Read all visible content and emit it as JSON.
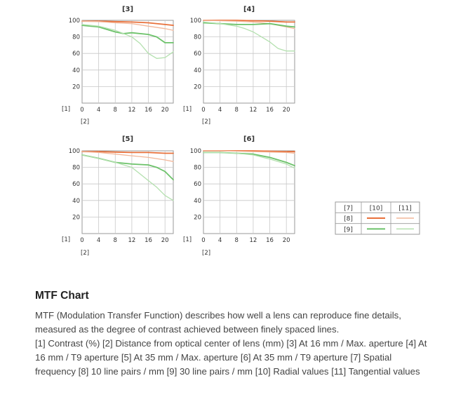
{
  "chart_data": [
    {
      "type": "line",
      "title": "[3]",
      "ylabel": "[1]",
      "xlabel": "[2]",
      "xlim": [
        0,
        22
      ],
      "ylim": [
        0,
        100
      ],
      "xticks": [
        "0",
        "4",
        "8",
        "12",
        "16",
        "20"
      ],
      "yticks": [
        "20",
        "40",
        "60",
        "80",
        "100"
      ],
      "grid": true,
      "series": [
        {
          "group": "[8]",
          "kind": "[10]",
          "color": "#e8703a",
          "dash": false,
          "x": [
            0,
            4,
            8,
            12,
            16,
            20,
            22
          ],
          "y": [
            99,
            99,
            98.5,
            98,
            97,
            95,
            94
          ]
        },
        {
          "group": "[8]",
          "kind": "[11]",
          "color": "#f2b79a",
          "dash": false,
          "x": [
            0,
            4,
            8,
            12,
            16,
            20,
            22
          ],
          "y": [
            99,
            98.5,
            97,
            96,
            93,
            90,
            88
          ]
        },
        {
          "group": "[9]",
          "kind": "[10]",
          "color": "#6cc26a",
          "dash": false,
          "x": [
            0,
            4,
            8,
            10,
            12,
            16,
            18,
            20,
            22
          ],
          "y": [
            94,
            92,
            86,
            84,
            85,
            83,
            80,
            73,
            73
          ]
        },
        {
          "group": "[9]",
          "kind": "[11]",
          "color": "#b3e0ae",
          "dash": false,
          "x": [
            0,
            4,
            8,
            12,
            14,
            16,
            18,
            20,
            22
          ],
          "y": [
            95,
            93,
            88,
            80,
            72,
            60,
            54,
            55,
            62
          ]
        }
      ]
    },
    {
      "type": "line",
      "title": "[4]",
      "ylabel": "[1]",
      "xlabel": "[2]",
      "xlim": [
        0,
        22
      ],
      "ylim": [
        0,
        100
      ],
      "xticks": [
        "0",
        "4",
        "8",
        "12",
        "16",
        "20"
      ],
      "yticks": [
        "20",
        "40",
        "60",
        "80",
        "100"
      ],
      "grid": true,
      "series": [
        {
          "group": "[8]",
          "kind": "[10]",
          "color": "#e8703a",
          "dash": false,
          "x": [
            0,
            4,
            8,
            12,
            16,
            20,
            22
          ],
          "y": [
            100,
            100,
            100,
            99.5,
            99,
            98,
            98
          ]
        },
        {
          "group": "[8]",
          "kind": "[11]",
          "color": "#f2b79a",
          "dash": false,
          "x": [
            0,
            4,
            8,
            12,
            16,
            20,
            22
          ],
          "y": [
            100,
            99.5,
            99,
            98,
            96,
            92,
            90
          ]
        },
        {
          "group": "[9]",
          "kind": "[10]",
          "color": "#6cc26a",
          "dash": false,
          "x": [
            0,
            4,
            8,
            12,
            16,
            20,
            22
          ],
          "y": [
            97,
            96,
            95,
            95,
            96,
            93,
            92
          ]
        },
        {
          "group": "[9]",
          "kind": "[11]",
          "color": "#b3e0ae",
          "dash": false,
          "x": [
            0,
            4,
            8,
            10,
            12,
            14,
            16,
            18,
            20,
            22
          ],
          "y": [
            98,
            96,
            93,
            90,
            86,
            80,
            74,
            66,
            63,
            63
          ]
        }
      ]
    },
    {
      "type": "line",
      "title": "[5]",
      "ylabel": "[1]",
      "xlabel": "[2]",
      "xlim": [
        0,
        22
      ],
      "ylim": [
        0,
        100
      ],
      "xticks": [
        "0",
        "4",
        "8",
        "12",
        "16",
        "20"
      ],
      "yticks": [
        "20",
        "40",
        "60",
        "80",
        "100"
      ],
      "grid": true,
      "series": [
        {
          "group": "[8]",
          "kind": "[10]",
          "color": "#e8703a",
          "dash": false,
          "x": [
            0,
            4,
            8,
            12,
            16,
            20,
            22
          ],
          "y": [
            99,
            99,
            98.5,
            98,
            98,
            97,
            97
          ]
        },
        {
          "group": "[8]",
          "kind": "[11]",
          "color": "#f2b79a",
          "dash": false,
          "x": [
            0,
            4,
            8,
            12,
            16,
            20,
            22
          ],
          "y": [
            99,
            98,
            96,
            94,
            92,
            89,
            87
          ]
        },
        {
          "group": "[9]",
          "kind": "[10]",
          "color": "#6cc26a",
          "dash": false,
          "x": [
            0,
            4,
            8,
            12,
            16,
            18,
            20,
            22
          ],
          "y": [
            95,
            91,
            86,
            84,
            83,
            80,
            75,
            65
          ]
        },
        {
          "group": "[9]",
          "kind": "[11]",
          "color": "#b3e0ae",
          "dash": false,
          "x": [
            0,
            4,
            8,
            12,
            14,
            16,
            18,
            20,
            22
          ],
          "y": [
            95,
            91,
            86,
            80,
            72,
            64,
            56,
            46,
            40
          ]
        }
      ]
    },
    {
      "type": "line",
      "title": "[6]",
      "ylabel": "[1]",
      "xlabel": "[2]",
      "xlim": [
        0,
        22
      ],
      "ylim": [
        0,
        100
      ],
      "xticks": [
        "0",
        "4",
        "8",
        "12",
        "16",
        "20"
      ],
      "yticks": [
        "20",
        "40",
        "60",
        "80",
        "100"
      ],
      "grid": true,
      "series": [
        {
          "group": "[8]",
          "kind": "[10]",
          "color": "#e8703a",
          "dash": false,
          "x": [
            0,
            4,
            8,
            12,
            16,
            20,
            22
          ],
          "y": [
            100,
            100,
            100,
            100,
            99.5,
            99,
            99
          ]
        },
        {
          "group": "[8]",
          "kind": "[11]",
          "color": "#f2b79a",
          "dash": false,
          "x": [
            0,
            4,
            8,
            12,
            16,
            20,
            22
          ],
          "y": [
            100,
            100,
            99.5,
            99,
            98.5,
            98,
            97
          ]
        },
        {
          "group": "[9]",
          "kind": "[10]",
          "color": "#6cc26a",
          "dash": false,
          "x": [
            0,
            4,
            8,
            12,
            16,
            20,
            22
          ],
          "y": [
            98,
            98,
            97,
            96,
            92,
            86,
            82
          ]
        },
        {
          "group": "[9]",
          "kind": "[11]",
          "color": "#b3e0ae",
          "dash": false,
          "x": [
            0,
            4,
            8,
            12,
            16,
            20,
            22
          ],
          "y": [
            98,
            98,
            97,
            95,
            90,
            84,
            79
          ]
        }
      ]
    }
  ],
  "legend": {
    "headers": [
      "[7]",
      "[10]",
      "[11]"
    ],
    "rows": [
      {
        "label": "[8]",
        "radial_color": "#e8703a",
        "tangential_color": "#f2b79a"
      },
      {
        "label": "[9]",
        "radial_color": "#6cc26a",
        "tangential_color": "#b3e0ae"
      }
    ]
  },
  "description": {
    "heading": "MTF Chart",
    "intro": "MTF (Modulation Transfer Function) describes how well a lens can reproduce fine details, measured as the degree of contrast achieved between finely spaced lines.",
    "legend_text": "[1] Contrast (%) [2] Distance from optical center of lens (mm) [3] At 16 mm / Max. aperture [4] At 16 mm / T9 aperture [5] At 35 mm / Max. aperture [6] At 35 mm / T9 aperture [7] Spatial frequency [8] 10 line pairs / mm [9] 30 line pairs / mm [10] Radial values [11] Tangential values"
  }
}
